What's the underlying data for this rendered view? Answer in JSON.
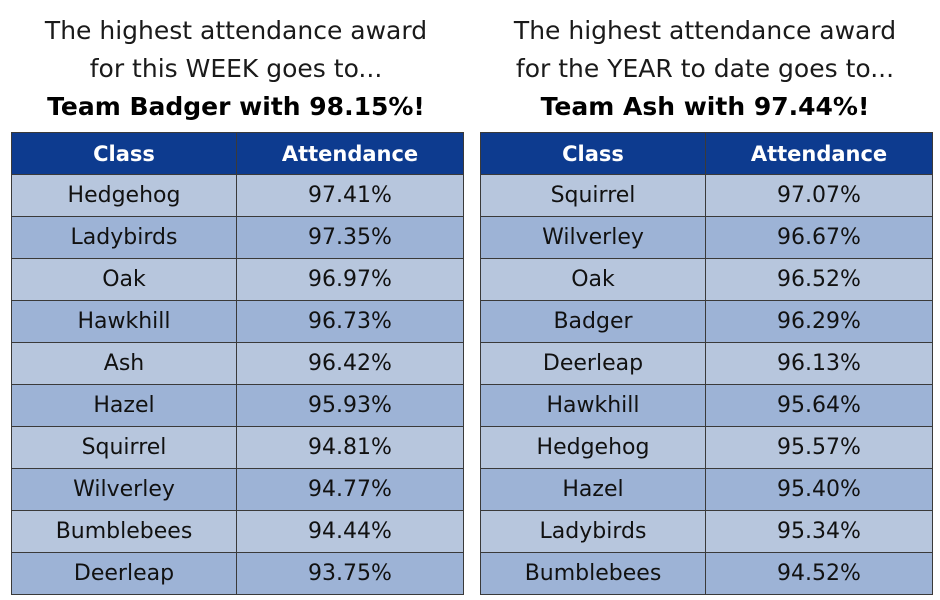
{
  "weekly": {
    "heading_line1": "The highest attendance award",
    "heading_line2": "for this WEEK goes to...",
    "winner": "Team Badger with 98.15%!",
    "columns": [
      "Class",
      "Attendance"
    ],
    "rows": [
      {
        "class": "Hedgehog",
        "attendance": "97.41%"
      },
      {
        "class": "Ladybirds",
        "attendance": "97.35%"
      },
      {
        "class": "Oak",
        "attendance": "96.97%"
      },
      {
        "class": "Hawkhill",
        "attendance": "96.73%"
      },
      {
        "class": "Ash",
        "attendance": "96.42%"
      },
      {
        "class": "Hazel",
        "attendance": "95.93%"
      },
      {
        "class": "Squirrel",
        "attendance": "94.81%"
      },
      {
        "class": "Wilverley",
        "attendance": "94.77%"
      },
      {
        "class": "Bumblebees",
        "attendance": "94.44%"
      },
      {
        "class": "Deerleap",
        "attendance": "93.75%"
      }
    ]
  },
  "yearly": {
    "heading_line1": "The highest attendance award",
    "heading_line2": "for the YEAR to date goes to...",
    "winner": "Team Ash with 97.44%!",
    "columns": [
      "Class",
      "Attendance"
    ],
    "rows": [
      {
        "class": "Squirrel",
        "attendance": "97.07%"
      },
      {
        "class": "Wilverley",
        "attendance": "96.67%"
      },
      {
        "class": "Oak",
        "attendance": "96.52%"
      },
      {
        "class": "Badger",
        "attendance": "96.29%"
      },
      {
        "class": "Deerleap",
        "attendance": "96.13%"
      },
      {
        "class": "Hawkhill",
        "attendance": "95.64%"
      },
      {
        "class": "Hedgehog",
        "attendance": "95.57%"
      },
      {
        "class": "Hazel",
        "attendance": "95.40%"
      },
      {
        "class": "Ladybirds",
        "attendance": "95.34%"
      },
      {
        "class": "Bumblebees",
        "attendance": "94.52%"
      }
    ]
  },
  "colors": {
    "header_bg": "#0d3b8f",
    "row_light": "#b7c6dd",
    "row_dark": "#9db3d6"
  }
}
